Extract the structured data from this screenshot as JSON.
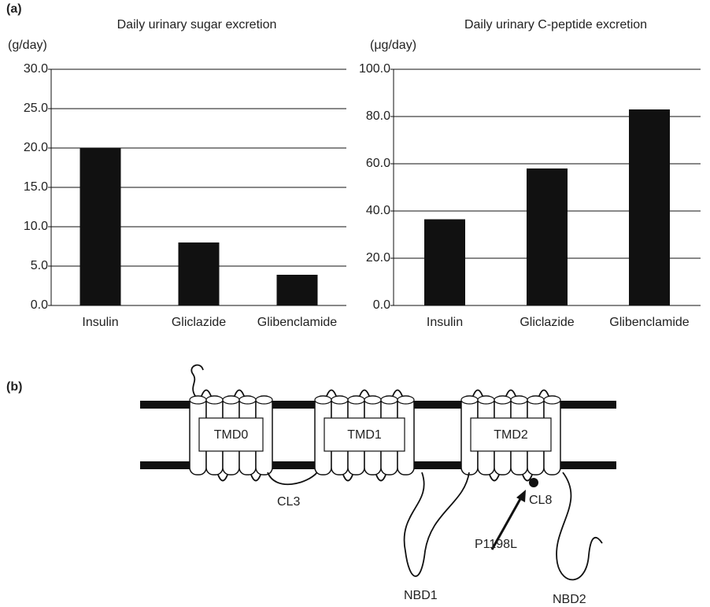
{
  "panel_labels": [
    "(a)",
    "(b)"
  ],
  "chart_data": [
    {
      "type": "bar",
      "title": "Daily urinary sugar excretion",
      "y_label": "(g/day)",
      "categories": [
        "Insulin",
        "Gliclazide",
        "Glibenclamide"
      ],
      "values": [
        20,
        8,
        3.9
      ],
      "color": "#111111",
      "ylim": [
        0,
        30
      ],
      "yticks": [
        {
          "value": 0,
          "label": "0.0"
        },
        {
          "value": 5,
          "label": "5.0"
        },
        {
          "value": 10,
          "label": "10.0"
        },
        {
          "value": 15,
          "label": "15.0"
        },
        {
          "value": 20,
          "label": "20.0"
        },
        {
          "value": 25,
          "label": "25.0"
        },
        {
          "value": 30,
          "label": "30.0"
        }
      ],
      "grid": true
    },
    {
      "type": "bar",
      "title": "Daily urinary C-peptide excretion",
      "y_label": "(μg/day)",
      "categories": [
        "Insulin",
        "Gliclazide",
        "Glibenclamide"
      ],
      "values": [
        36.5,
        58,
        83
      ],
      "color": "#111111",
      "ylim": [
        0,
        100
      ],
      "yticks": [
        {
          "value": 0,
          "label": "0.0"
        },
        {
          "value": 20,
          "label": "20.0"
        },
        {
          "value": 40,
          "label": "40.0"
        },
        {
          "value": 60,
          "label": "60.0"
        },
        {
          "value": 80,
          "label": "80.0"
        },
        {
          "value": 100,
          "label": "100.0"
        }
      ],
      "grid": true
    }
  ],
  "diagram": {
    "domains": [
      "TMD0",
      "TMD1",
      "TMD2"
    ],
    "loop_labels": [
      "CL3",
      "CL8"
    ],
    "mutation": "P1198L",
    "nbd_labels": [
      "NBD1",
      "NBD2"
    ]
  }
}
